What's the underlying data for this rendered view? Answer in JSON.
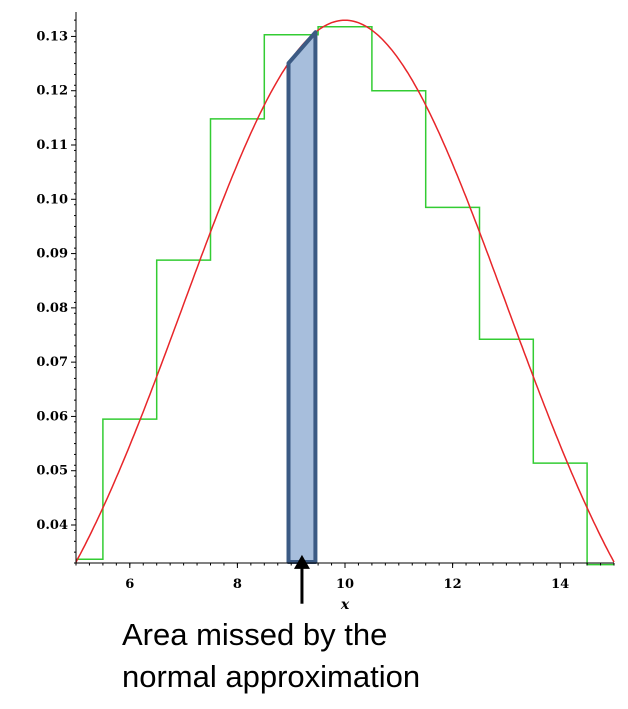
{
  "chart_data": {
    "type": "line",
    "xlabel": "x",
    "ylabel": "",
    "xlim": [
      5,
      15
    ],
    "ylim": [
      0.033,
      0.1345
    ],
    "x_ticks": [
      6,
      8,
      10,
      12,
      14
    ],
    "x_tick_labels": [
      "6",
      "8",
      "10",
      "12",
      "14"
    ],
    "y_ticks": [
      0.04,
      0.05,
      0.06,
      0.07,
      0.08,
      0.09,
      0.1,
      0.11,
      0.12,
      0.13
    ],
    "y_tick_labels": [
      "0.04",
      "0.05",
      "0.06",
      "0.07",
      "0.08",
      "0.09",
      "0.10",
      "0.11",
      "0.12",
      "0.13"
    ],
    "grid": false,
    "series": [
      {
        "kind": "step",
        "color": "#33cc33",
        "points": [
          {
            "x_start": 5.0,
            "x_end": 5.5,
            "y": 0.0337
          },
          {
            "x_start": 5.5,
            "x_end": 6.5,
            "y": 0.0595
          },
          {
            "x_start": 6.5,
            "x_end": 7.5,
            "y": 0.0888
          },
          {
            "x_start": 7.5,
            "x_end": 8.5,
            "y": 0.1148
          },
          {
            "x_start": 8.5,
            "x_end": 9.5,
            "y": 0.1303
          },
          {
            "x_start": 9.5,
            "x_end": 10.5,
            "y": 0.1318
          },
          {
            "x_start": 10.5,
            "x_end": 11.5,
            "y": 0.12
          },
          {
            "x_start": 11.5,
            "x_end": 12.5,
            "y": 0.0985
          },
          {
            "x_start": 12.5,
            "x_end": 13.5,
            "y": 0.0742
          },
          {
            "x_start": 13.5,
            "x_end": 14.5,
            "y": 0.0514
          },
          {
            "x_start": 14.5,
            "x_end": 15.0,
            "y": 0.0327
          }
        ]
      },
      {
        "kind": "curve",
        "color": "#e8262a",
        "mean": 10,
        "sd": 3
      }
    ],
    "shaded_region": {
      "x_start": 8.95,
      "x_end": 9.45,
      "fill": "#a7bedc",
      "stroke": "#3b5a84"
    },
    "annotation": {
      "lines": [
        "Area missed by the",
        "normal approximation"
      ],
      "arrow_x": 9.2,
      "arrow_y_top": 0.0345,
      "arrow_y_bottom": 0.0255
    }
  }
}
